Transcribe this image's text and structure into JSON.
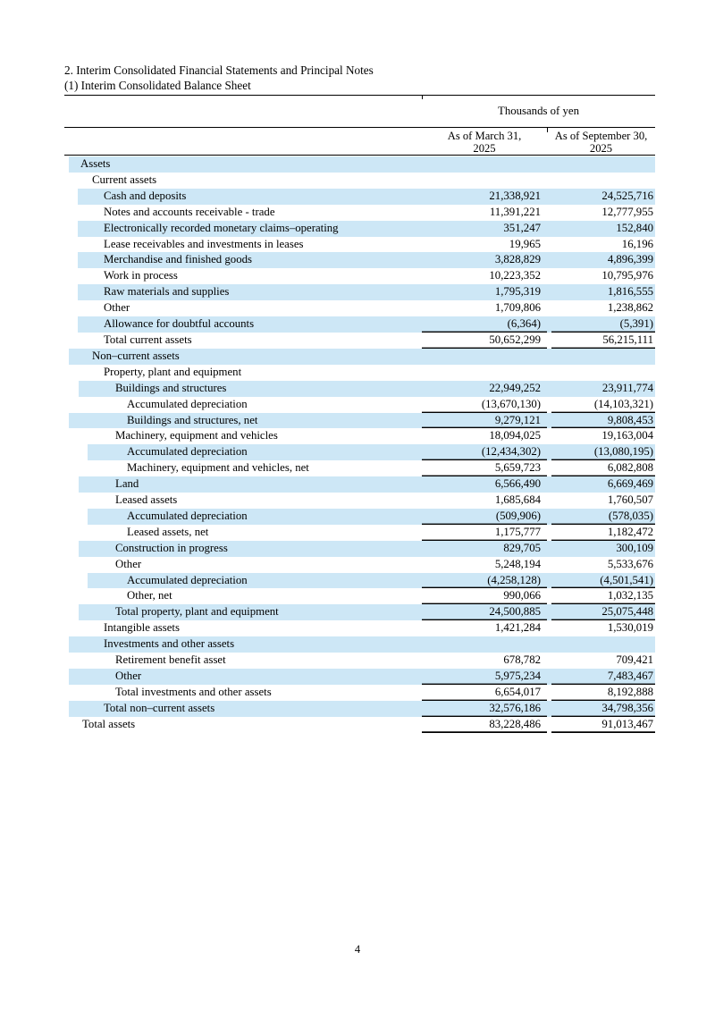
{
  "header": {
    "title_line1": "2. Interim Consolidated Financial Statements and Principal Notes",
    "title_line2": "(1) Interim Consolidated Balance Sheet",
    "unit_label": "Thousands of yen"
  },
  "colors": {
    "highlight": "#CDE7F6"
  },
  "footer": {
    "page_number": "4"
  },
  "table": {
    "columns": [
      {
        "line1": "As of March 31,",
        "line2": "2025"
      },
      {
        "line1": "As of September 30,",
        "line2": "2025"
      }
    ],
    "rows": [
      {
        "label": "Assets",
        "lvl": 1,
        "v1": "",
        "v2": "",
        "hl": true,
        "bb": false
      },
      {
        "label": "Current assets",
        "lvl": 2,
        "v1": "",
        "v2": "",
        "hl": false,
        "bb": false
      },
      {
        "label": "Cash and deposits",
        "lvl": 3,
        "v1": "21,338,921",
        "v2": "24,525,716",
        "hl": true,
        "bb": false
      },
      {
        "label": "Notes and accounts receivable - trade",
        "lvl": 3,
        "v1": "11,391,221",
        "v2": "12,777,955",
        "hl": false,
        "bb": false
      },
      {
        "label": "Electronically recorded monetary claims–operating",
        "lvl": 3,
        "v1": "351,247",
        "v2": "152,840",
        "hl": true,
        "bb": false
      },
      {
        "label": "Lease receivables and investments in leases",
        "lvl": 3,
        "v1": "19,965",
        "v2": "16,196",
        "hl": false,
        "bb": false
      },
      {
        "label": "Merchandise and finished goods",
        "lvl": 3,
        "v1": "3,828,829",
        "v2": "4,896,399",
        "hl": true,
        "bb": false
      },
      {
        "label": "Work in process",
        "lvl": 3,
        "v1": "10,223,352",
        "v2": "10,795,976",
        "hl": false,
        "bb": false
      },
      {
        "label": "Raw materials and supplies",
        "lvl": 3,
        "v1": "1,795,319",
        "v2": "1,816,555",
        "hl": true,
        "bb": false
      },
      {
        "label": "Other",
        "lvl": 3,
        "v1": "1,709,806",
        "v2": "1,238,862",
        "hl": false,
        "bb": false
      },
      {
        "label": "Allowance for doubtful accounts",
        "lvl": 3,
        "v1": "(6,364)",
        "v2": "(5,391)",
        "hl": true,
        "bb": true
      },
      {
        "label": "Total current assets",
        "lvl": 3,
        "v1": "50,652,299",
        "v2": "56,215,111",
        "hl": false,
        "bb": true
      },
      {
        "label": "Non–current assets",
        "lvl": 2,
        "v1": "",
        "v2": "",
        "hl": true,
        "bb": false
      },
      {
        "label": "Property, plant and equipment",
        "lvl": 3,
        "v1": "",
        "v2": "",
        "hl": false,
        "bb": false
      },
      {
        "label": "Buildings and structures",
        "lvl": 4,
        "v1": "22,949,252",
        "v2": "23,911,774",
        "hl": true,
        "bb": false
      },
      {
        "label": "Accumulated depreciation",
        "lvl": 5,
        "v1": "(13,670,130)",
        "v2": "(14,103,321)",
        "hl": false,
        "bb": true
      },
      {
        "label": "Buildings and structures, net",
        "lvl": 5,
        "v1": "9,279,121",
        "v2": "9,808,453",
        "hl": true,
        "bb": true,
        "band_full": true
      },
      {
        "label": "Machinery, equipment and vehicles",
        "lvl": 4,
        "v1": "18,094,025",
        "v2": "19,163,004",
        "hl": false,
        "bb": false
      },
      {
        "label": "Accumulated depreciation",
        "lvl": 5,
        "v1": "(12,434,302)",
        "v2": "(13,080,195)",
        "hl": true,
        "bb": true
      },
      {
        "label": "Machinery, equipment and vehicles, net",
        "lvl": 5,
        "v1": "5,659,723",
        "v2": "6,082,808",
        "hl": false,
        "bb": true
      },
      {
        "label": "Land",
        "lvl": 4,
        "v1": "6,566,490",
        "v2": "6,669,469",
        "hl": true,
        "bb": false
      },
      {
        "label": "Leased assets",
        "lvl": 4,
        "v1": "1,685,684",
        "v2": "1,760,507",
        "hl": false,
        "bb": false
      },
      {
        "label": "Accumulated depreciation",
        "lvl": 5,
        "v1": "(509,906)",
        "v2": "(578,035)",
        "hl": true,
        "bb": true
      },
      {
        "label": "Leased assets, net",
        "lvl": 5,
        "v1": "1,175,777",
        "v2": "1,182,472",
        "hl": false,
        "bb": true
      },
      {
        "label": "Construction in progress",
        "lvl": 4,
        "v1": "829,705",
        "v2": "300,109",
        "hl": true,
        "bb": false
      },
      {
        "label": "Other",
        "lvl": 4,
        "v1": "5,248,194",
        "v2": "5,533,676",
        "hl": false,
        "bb": false
      },
      {
        "label": "Accumulated depreciation",
        "lvl": 5,
        "v1": "(4,258,128)",
        "v2": "(4,501,541)",
        "hl": true,
        "bb": true
      },
      {
        "label": "Other, net",
        "lvl": 5,
        "v1": "990,066",
        "v2": "1,032,135",
        "hl": false,
        "bb": true
      },
      {
        "label": "Total property, plant and equipment",
        "lvl": 4,
        "v1": "24,500,885",
        "v2": "25,075,448",
        "hl": true,
        "bb": true
      },
      {
        "label": "Intangible assets",
        "lvl": 3,
        "v1": "1,421,284",
        "v2": "1,530,019",
        "hl": false,
        "bb": false
      },
      {
        "label": "Investments and other assets",
        "lvl": 3,
        "v1": "",
        "v2": "",
        "hl": true,
        "bb": false,
        "band_full": true
      },
      {
        "label": "Retirement benefit asset",
        "lvl": 4,
        "v1": "678,782",
        "v2": "709,421",
        "hl": false,
        "bb": false
      },
      {
        "label": "Other",
        "lvl": 4,
        "v1": "5,975,234",
        "v2": "7,483,467",
        "hl": true,
        "bb": true,
        "band_full": true
      },
      {
        "label": "Total investments and other assets",
        "lvl": 4,
        "v1": "6,654,017",
        "v2": "8,192,888",
        "hl": false,
        "bb": true
      },
      {
        "label": "Total non–current assets",
        "lvl": 3,
        "v1": "32,576,186",
        "v2": "34,798,356",
        "hl": true,
        "bb": true,
        "band_full": true
      },
      {
        "label": "Total assets",
        "lvl": 2,
        "v1": "83,228,486",
        "v2": "91,013,467",
        "hl": false,
        "bb": true,
        "thick": true,
        "indent": 20
      }
    ]
  }
}
